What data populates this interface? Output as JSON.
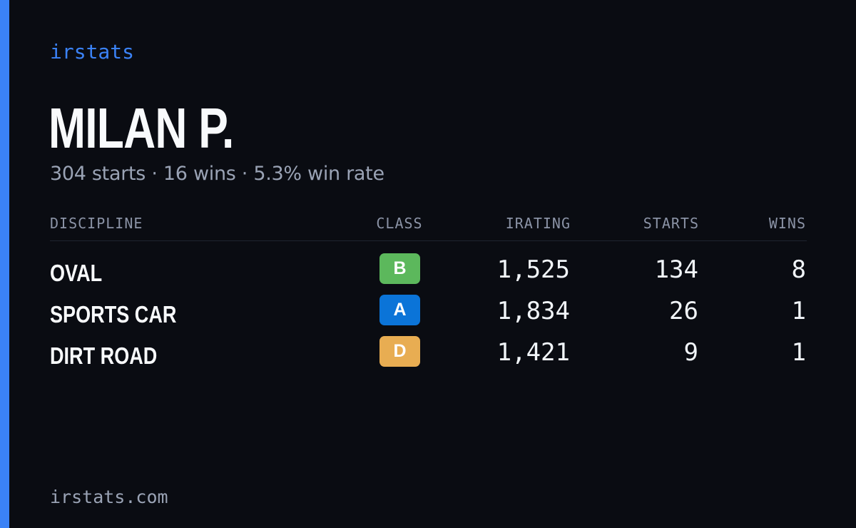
{
  "brand": "irstats",
  "driver": {
    "name": "MILAN P.",
    "summary": "304 starts · 16 wins · 5.3% win rate"
  },
  "table": {
    "headers": {
      "discipline": "DISCIPLINE",
      "class": "CLASS",
      "irating": "IRATING",
      "starts": "STARTS",
      "wins": "WINS"
    },
    "rows": [
      {
        "discipline": "OVAL",
        "class": "B",
        "class_color": "#5cb85c",
        "irating": "1,525",
        "starts": "134",
        "wins": "8"
      },
      {
        "discipline": "SPORTS CAR",
        "class": "A",
        "class_color": "#0b74d8",
        "irating": "1,834",
        "starts": "26",
        "wins": "1"
      },
      {
        "discipline": "DIRT ROAD",
        "class": "D",
        "class_color": "#e8ad52",
        "irating": "1,421",
        "starts": "9",
        "wins": "1"
      }
    ]
  },
  "footer": "irstats.com",
  "colors": {
    "accent": "#3b82f6",
    "background": "#0a0c12"
  }
}
